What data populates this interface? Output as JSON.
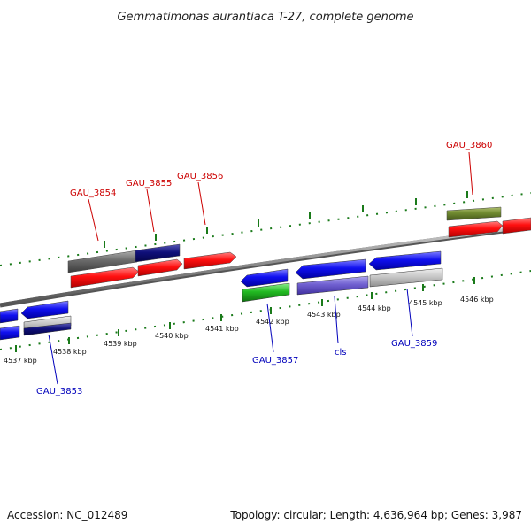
{
  "title": "Gemmatimonas aurantiaca T-27, complete genome",
  "footer": {
    "accession": "Accession: NC_012489",
    "topology": "Topology: circular; Length: 4,636,964 bp; Genes: 3,987"
  },
  "colors": {
    "forward_label": "#cc0000",
    "reverse_label": "#0000bb",
    "tick": "#1a7a1a",
    "backbone": "#8c8c8c",
    "forward_cds": "#ff1111",
    "reverse_cds": "#1111ee"
  },
  "ticks": [
    {
      "label": "4537 kbp"
    },
    {
      "label": "4538 kbp"
    },
    {
      "label": "4539 kbp"
    },
    {
      "label": "4540 kbp"
    },
    {
      "label": "4541 kbp"
    },
    {
      "label": "4542 kbp"
    },
    {
      "label": "4543 kbp"
    },
    {
      "label": "4544 kbp"
    },
    {
      "label": "4545 kbp"
    },
    {
      "label": "4546 kbp"
    }
  ],
  "gene_labels": {
    "gau_3853": "GAU_3853",
    "gau_3854": "GAU_3854",
    "gau_3855": "GAU_3855",
    "gau_3856": "GAU_3856",
    "gau_3857": "GAU_3857",
    "cls": "cls",
    "gau_3859": "GAU_3859",
    "gau_3860": "GAU_3860"
  }
}
